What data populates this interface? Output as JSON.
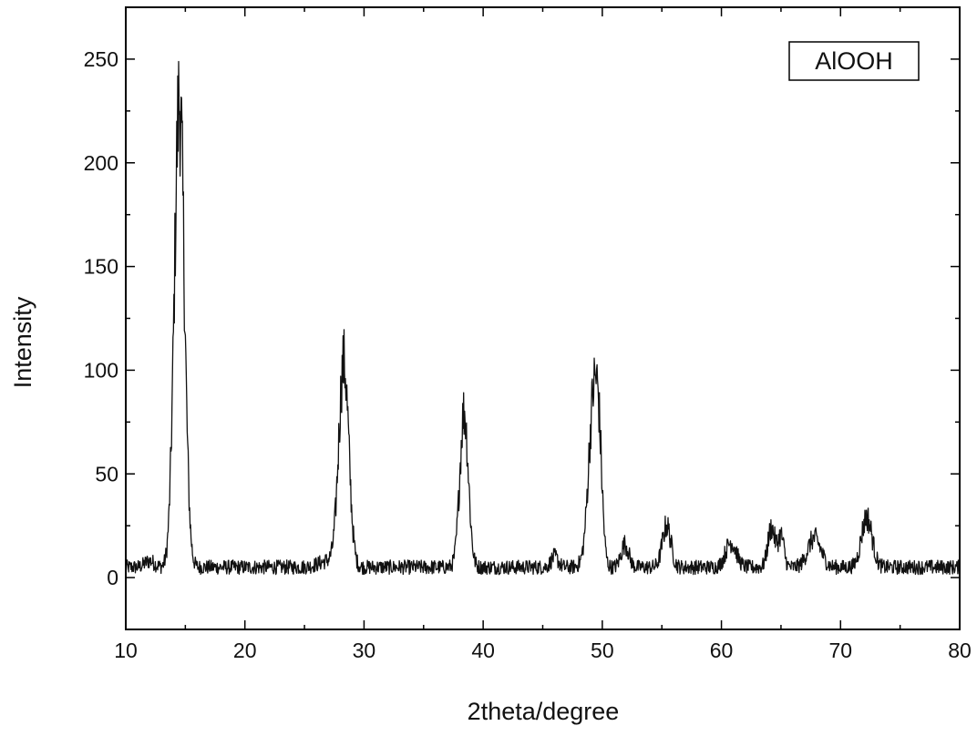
{
  "chart_data": {
    "type": "line",
    "title": "",
    "xlabel": "2theta/degree",
    "ylabel": "Intensity",
    "xlim": [
      10,
      80
    ],
    "ylim": [
      -25,
      275
    ],
    "x_ticks": [
      10,
      20,
      30,
      40,
      50,
      60,
      70,
      80
    ],
    "y_ticks": [
      0,
      50,
      100,
      150,
      200,
      250
    ],
    "grid": false,
    "legend": {
      "position": "top-right",
      "entries": [
        "AlOOH"
      ]
    },
    "colors": {
      "line": "#111111",
      "axes": "#000000"
    },
    "series": [
      {
        "name": "AlOOH",
        "baseline": 5,
        "noise_amplitude": 3.5,
        "x_step": 0.04,
        "peaks": [
          {
            "x": 12.0,
            "height": 3,
            "width": 0.4
          },
          {
            "x": 14.5,
            "height": 225,
            "width": 0.42
          },
          {
            "x": 27.0,
            "height": 3,
            "width": 0.8
          },
          {
            "x": 28.3,
            "height": 98,
            "width": 0.42
          },
          {
            "x": 38.4,
            "height": 75,
            "width": 0.36
          },
          {
            "x": 46.0,
            "height": 5,
            "width": 0.3
          },
          {
            "x": 48.8,
            "height": 4,
            "width": 0.5
          },
          {
            "x": 49.2,
            "height": 68,
            "width": 0.38
          },
          {
            "x": 49.7,
            "height": 50,
            "width": 0.3
          },
          {
            "x": 51.9,
            "height": 11,
            "width": 0.32
          },
          {
            "x": 55.4,
            "height": 20,
            "width": 0.36
          },
          {
            "x": 60.8,
            "height": 12,
            "width": 0.45
          },
          {
            "x": 64.2,
            "height": 19,
            "width": 0.3
          },
          {
            "x": 65.0,
            "height": 15,
            "width": 0.25
          },
          {
            "x": 67.8,
            "height": 14,
            "width": 0.55
          },
          {
            "x": 72.2,
            "height": 24,
            "width": 0.45
          }
        ]
      }
    ]
  }
}
